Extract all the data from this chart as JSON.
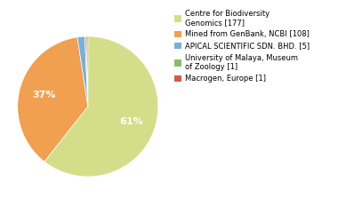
{
  "labels": [
    "Centre for Biodiversity\nGenomics [177]",
    "Mined from GenBank, NCBI [108]",
    "APICAL SCIENTIFIC SDN. BHD. [5]",
    "University of Malaya, Museum\nof Zoology [1]",
    "Macrogen, Europe [1]"
  ],
  "values": [
    177,
    108,
    5,
    1,
    1
  ],
  "colors": [
    "#d4de8a",
    "#f0a050",
    "#7ab0d4",
    "#8db870",
    "#d45a4a"
  ],
  "background_color": "#ffffff",
  "figsize": [
    3.8,
    2.4
  ],
  "dpi": 100
}
